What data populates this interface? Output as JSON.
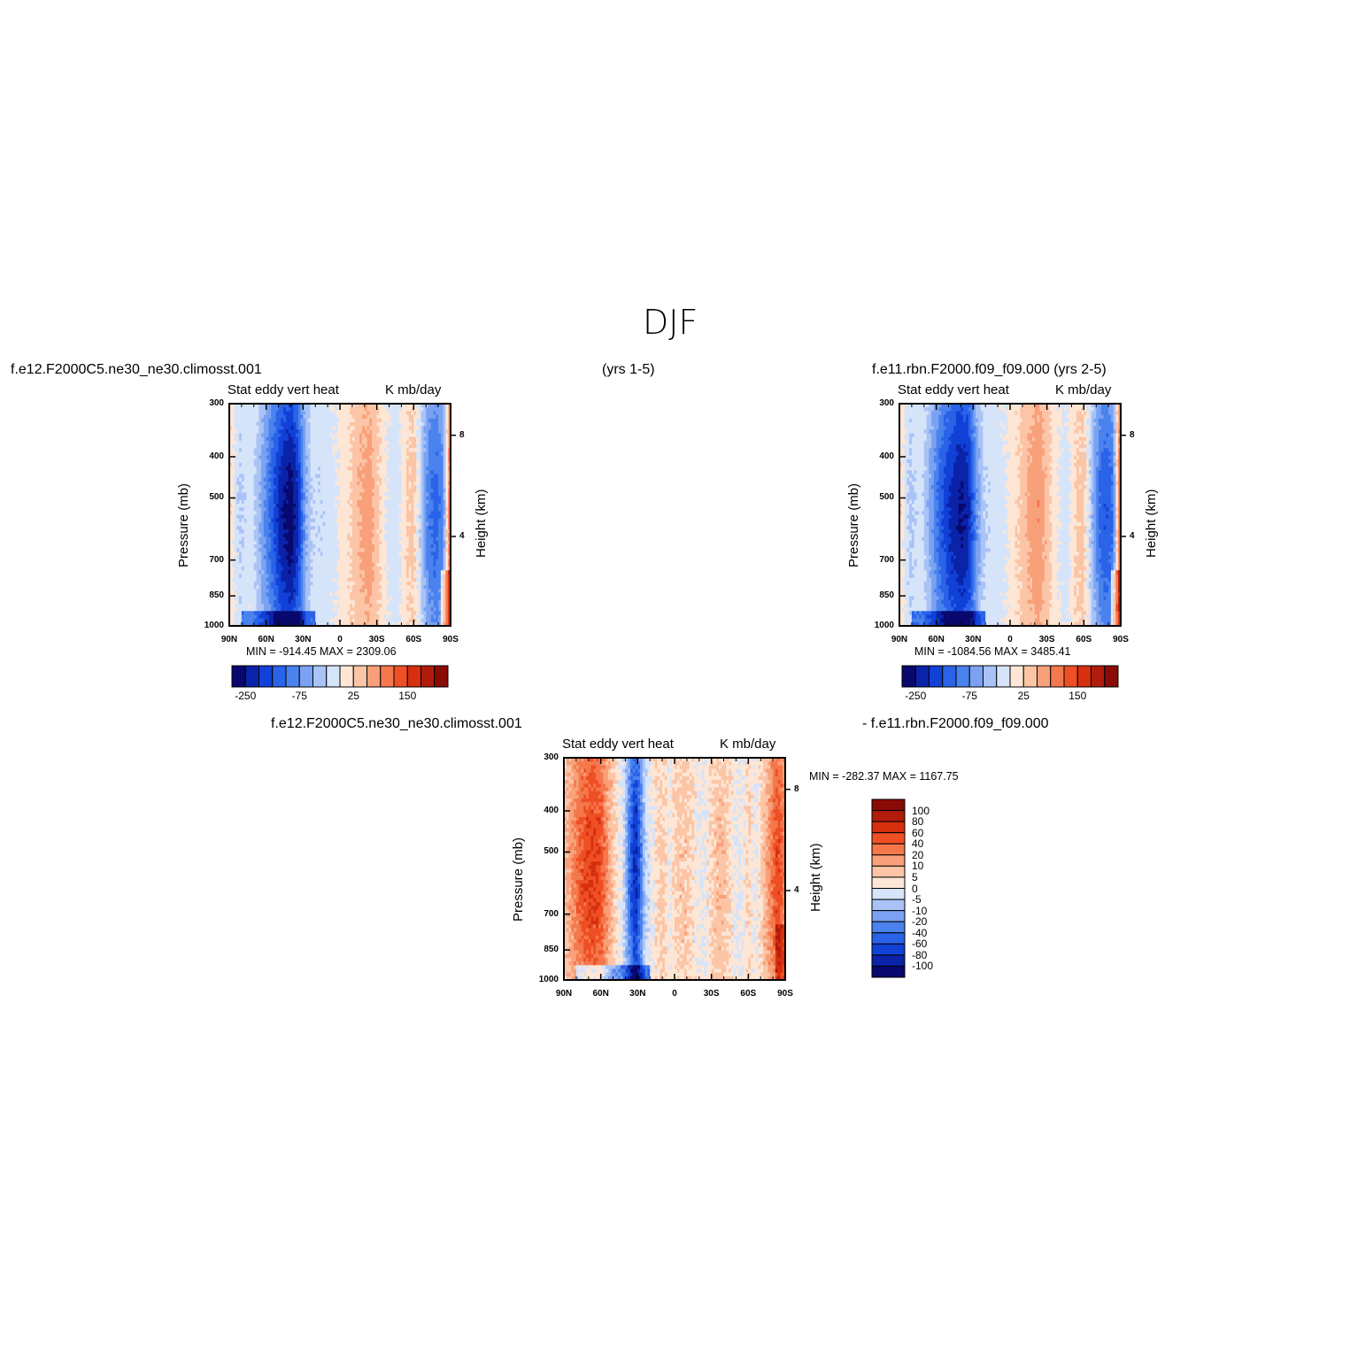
{
  "title": "DJF",
  "labels": {
    "case1": "f.e12.F2000C5.ne30_ne30.climosst.001",
    "years1": "(yrs 1-5)",
    "case2": "f.e11.rbn.F2000.f09_f09.000 (yrs 2-5)",
    "diff_case1": "f.e12.F2000C5.ne30_ne30.climosst.001",
    "diff_case2": "- f.e11.rbn.F2000.f09_f09.000"
  },
  "colors": {
    "abs_palette": [
      "#08086e",
      "#0a23a8",
      "#1141d6",
      "#2a62e8",
      "#4a82ee",
      "#7ba2f2",
      "#a9c3f6",
      "#d6e4fa",
      "#fde6d5",
      "#fbc5a6",
      "#f8a07a",
      "#f5784c",
      "#ef4f24",
      "#d6300f",
      "#b01b0c",
      "#8a0b06"
    ],
    "diff_palette": [
      "#08086e",
      "#0a23a8",
      "#1141d6",
      "#2a62e8",
      "#4a82ee",
      "#7ba2f2",
      "#a9c3f6",
      "#d6e4fa",
      "#fde6d5",
      "#fbc5a6",
      "#f8a07a",
      "#f5784c",
      "#ef4f24",
      "#d6300f",
      "#b01b0c",
      "#8a0b06"
    ]
  },
  "chart_data": [
    {
      "type": "heatmap",
      "panel": "case1",
      "title_left": "Stat eddy vert heat",
      "title_right": "K mb/day",
      "ylabel": "Pressure (mb)",
      "ylabel_right": "Height (km)",
      "ylim": [
        1000,
        300
      ],
      "yscale": "log",
      "yticks": [
        "300",
        "400",
        "500",
        "700",
        "850",
        "1000"
      ],
      "yticks_right": [
        "8",
        "4"
      ],
      "xticks": [
        "90N",
        "60N",
        "30N",
        "0",
        "30S",
        "60S",
        "90S"
      ],
      "minmax": "MIN = -914.45   MAX = 2309.06",
      "colorbar_ticks": [
        "-250",
        "-75",
        "25",
        "150"
      ],
      "grid": false,
      "profile": [
        [
          -90,
          0.5
        ],
        [
          -82,
          -1.5
        ],
        [
          -72,
          -0.8
        ],
        [
          -64,
          -2.5
        ],
        [
          -56,
          -4.5
        ],
        [
          -48,
          -6.5
        ],
        [
          -40,
          -7.5
        ],
        [
          -34,
          -6
        ],
        [
          -28,
          -2.5
        ],
        [
          -22,
          -1.2
        ],
        [
          -14,
          -1.2
        ],
        [
          -6,
          -0.8
        ],
        [
          0,
          -0.3
        ],
        [
          8,
          0.4
        ],
        [
          16,
          1.4
        ],
        [
          24,
          1.9
        ],
        [
          30,
          0.9
        ],
        [
          38,
          -0.6
        ],
        [
          46,
          -1.2
        ],
        [
          54,
          0.4
        ],
        [
          60,
          0.8
        ],
        [
          66,
          -1.6
        ],
        [
          72,
          -3.8
        ],
        [
          78,
          -4.5
        ],
        [
          84,
          -3.5
        ],
        [
          88,
          1.5
        ],
        [
          90,
          3.5
        ]
      ]
    },
    {
      "type": "heatmap",
      "panel": "case2",
      "title_left": "Stat eddy vert heat",
      "title_right": "K mb/day",
      "ylabel": "Pressure (mb)",
      "ylabel_right": "Height (km)",
      "ylim": [
        1000,
        300
      ],
      "yscale": "log",
      "yticks": [
        "300",
        "400",
        "500",
        "700",
        "850",
        "1000"
      ],
      "yticks_right": [
        "8",
        "4"
      ],
      "xticks": [
        "90N",
        "60N",
        "30N",
        "0",
        "30S",
        "60S",
        "90S"
      ],
      "minmax": "MIN = -1084.56   MAX = 3485.41",
      "colorbar_ticks": [
        "-250",
        "-75",
        "25",
        "150"
      ],
      "grid": false,
      "profile": [
        [
          -90,
          0.5
        ],
        [
          -82,
          -1.6
        ],
        [
          -72,
          -1.0
        ],
        [
          -64,
          -2.8
        ],
        [
          -56,
          -4.8
        ],
        [
          -48,
          -6.2
        ],
        [
          -40,
          -7.0
        ],
        [
          -34,
          -6.5
        ],
        [
          -28,
          -3.5
        ],
        [
          -22,
          -1.5
        ],
        [
          -14,
          -1.0
        ],
        [
          -6,
          -0.8
        ],
        [
          0,
          -0.2
        ],
        [
          8,
          0.6
        ],
        [
          16,
          1.6
        ],
        [
          24,
          2.2
        ],
        [
          30,
          1.0
        ],
        [
          38,
          -0.4
        ],
        [
          46,
          -1.0
        ],
        [
          54,
          0.6
        ],
        [
          60,
          0.8
        ],
        [
          66,
          -1.8
        ],
        [
          72,
          -4.0
        ],
        [
          78,
          -5.0
        ],
        [
          84,
          -4.0
        ],
        [
          88,
          1.8
        ],
        [
          90,
          3.8
        ]
      ]
    },
    {
      "type": "heatmap",
      "panel": "difference",
      "title_left": "Stat eddy vert heat",
      "title_right": "K mb/day",
      "ylabel": "Pressure (mb)",
      "ylabel_right": "Height (km)",
      "ylim": [
        1000,
        300
      ],
      "yscale": "log",
      "yticks": [
        "300",
        "400",
        "500",
        "700",
        "850",
        "1000"
      ],
      "yticks_right": [
        "8",
        "4"
      ],
      "xticks": [
        "90N",
        "60N",
        "30N",
        "0",
        "30S",
        "60S",
        "90S"
      ],
      "minmax": "MIN = -282.37   MAX = 1167.75",
      "colorbar_levels": [
        "100",
        "80",
        "60",
        "40",
        "20",
        "10",
        "5",
        "0",
        "-5",
        "-10",
        "-20",
        "-40",
        "-60",
        "-80",
        "-100"
      ],
      "grid": false,
      "profile": [
        [
          -90,
          1.0
        ],
        [
          -84,
          2.0
        ],
        [
          -76,
          3.5
        ],
        [
          -68,
          4.2
        ],
        [
          -60,
          3.8
        ],
        [
          -54,
          1.8
        ],
        [
          -48,
          0.4
        ],
        [
          -42,
          -0.8
        ],
        [
          -36,
          -4.5
        ],
        [
          -32,
          -6.5
        ],
        [
          -28,
          -4.5
        ],
        [
          -24,
          -1.5
        ],
        [
          -18,
          -0.3
        ],
        [
          -10,
          0.8
        ],
        [
          -4,
          -0.4
        ],
        [
          2,
          0.8
        ],
        [
          10,
          0.9
        ],
        [
          18,
          -0.2
        ],
        [
          24,
          -0.6
        ],
        [
          32,
          0.8
        ],
        [
          40,
          1.1
        ],
        [
          48,
          -0.3
        ],
        [
          54,
          -0.6
        ],
        [
          60,
          0.4
        ],
        [
          66,
          -0.5
        ],
        [
          72,
          0.9
        ],
        [
          78,
          2.5
        ],
        [
          84,
          4.0
        ],
        [
          90,
          2.5
        ]
      ]
    }
  ]
}
